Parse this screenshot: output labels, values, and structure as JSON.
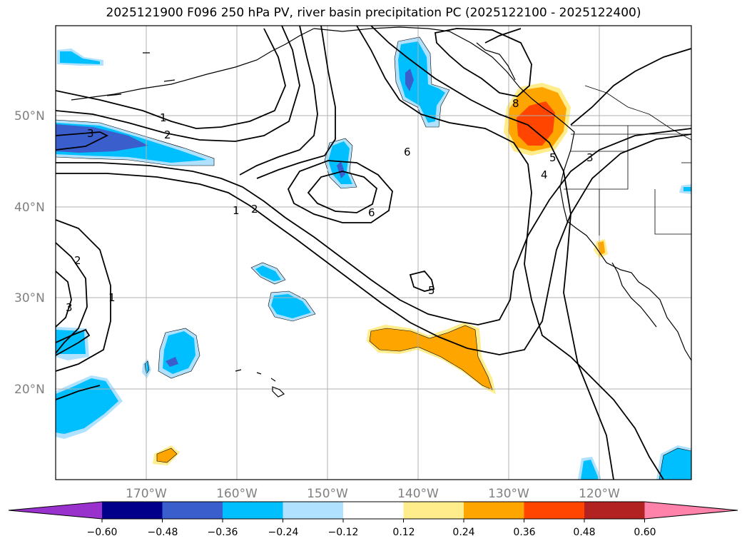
{
  "title": "2025121900 F096 250 hPa PV, river basin precipitation PC (2025122100 - 2025122400)",
  "lat_labels": [
    "50°N",
    "40°N",
    "30°N",
    "20°N"
  ],
  "lon_labels": [
    "170°W",
    "160°W",
    "150°W",
    "140°W",
    "130°W",
    "120°W"
  ],
  "colorbar": {
    "ticks": [
      "−0.60",
      "−0.48",
      "−0.36",
      "−0.24",
      "−0.12",
      "0.12",
      "0.24",
      "0.36",
      "0.48",
      "0.60"
    ],
    "colors": [
      "#9932cc",
      "#00008b",
      "#3a5fcd",
      "#00bfff",
      "#b0e2ff",
      "#ffffff",
      "#ffec8b",
      "#ffa500",
      "#ff4500",
      "#b22222",
      "#ff82ab"
    ]
  },
  "contour_labels": [
    "1",
    "2",
    "3",
    "1",
    "2",
    "6",
    "6",
    "5",
    "4",
    "5",
    "3",
    "3",
    "2",
    "1",
    "8"
  ],
  "colors": {
    "negative_light": "#b0e2ff",
    "negative_mid": "#00bfff",
    "negative_strong": "#3a5fcd",
    "positive_light": "#ffec8b",
    "positive_mid": "#ffa500",
    "positive_strong": "#ff4500",
    "contour": "#000000",
    "grid": "#b0b0b0"
  }
}
